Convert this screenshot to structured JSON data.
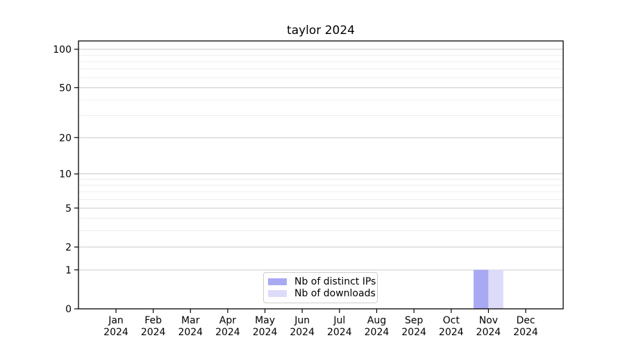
{
  "chart_data": {
    "type": "bar",
    "title": "taylor 2024",
    "categories": [
      "Jan 2024",
      "Feb 2024",
      "Mar 2024",
      "Apr 2024",
      "May 2024",
      "Jun 2024",
      "Jul 2024",
      "Aug 2024",
      "Sep 2024",
      "Oct 2024",
      "Nov 2024",
      "Dec 2024"
    ],
    "series": [
      {
        "name": "Nb of distinct IPs",
        "color": "#a9a9f3",
        "values": [
          0,
          0,
          0,
          0,
          0,
          0,
          0,
          0,
          0,
          0,
          1,
          0
        ]
      },
      {
        "name": "Nb of downloads",
        "color": "#dcdcf9",
        "values": [
          0,
          0,
          0,
          0,
          0,
          0,
          0,
          0,
          0,
          0,
          1,
          0
        ]
      }
    ],
    "yscale": "log1p",
    "ylim": [
      0,
      113
    ],
    "y_major_ticks": [
      100,
      50,
      20,
      10,
      5,
      2,
      1,
      0
    ],
    "y_minor_gridlines": [
      3,
      4,
      6,
      7,
      8,
      9,
      30,
      40,
      60,
      70,
      80,
      90
    ],
    "grid": true,
    "legend_position": "lower center",
    "colors": {
      "major_grid": "#c9c9c9",
      "minor_grid": "#ececec",
      "axis": "#000000",
      "tick_text": "#000000",
      "background": "#ffffff"
    }
  }
}
